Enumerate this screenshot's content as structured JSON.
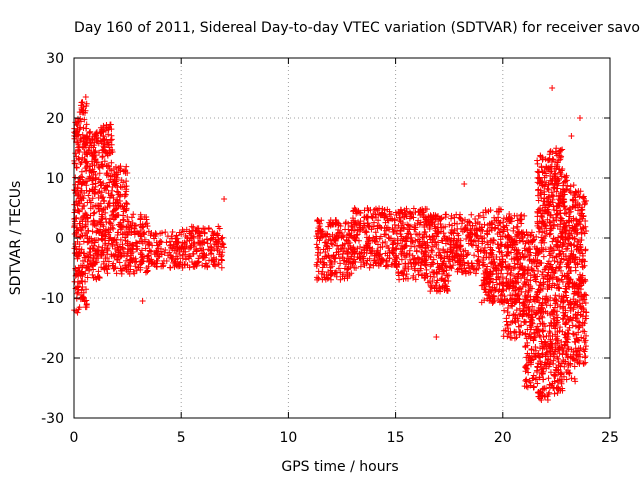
{
  "chart_data": {
    "type": "scatter",
    "title": "Day 160 of 2011, Sidereal Day-to-day VTEC variation (SDTVAR) for receiver savo",
    "xlabel": "GPS time / hours",
    "ylabel": "SDTVAR / TECUs",
    "xlim": [
      0,
      25
    ],
    "ylim": [
      -30,
      30
    ],
    "xticks": [
      0,
      5,
      10,
      15,
      20,
      25
    ],
    "xtick_labels": [
      "0",
      "5",
      "10",
      "15",
      "20",
      "25"
    ],
    "yticks": [
      -30,
      -20,
      -10,
      0,
      10,
      20,
      30
    ],
    "ytick_labels": [
      "-30",
      "-20",
      "-10",
      "0",
      "10",
      "20",
      "30"
    ],
    "grid": true,
    "marker": "+",
    "color": "#ff0000",
    "bands": [
      {
        "x": [
          0.0,
          0.3
        ],
        "y": [
          -13,
          21
        ]
      },
      {
        "x": [
          0.3,
          0.6
        ],
        "y": [
          -12,
          23
        ]
      },
      {
        "x": [
          0.6,
          1.2
        ],
        "y": [
          -7,
          18
        ]
      },
      {
        "x": [
          1.2,
          1.8
        ],
        "y": [
          -6,
          19
        ]
      },
      {
        "x": [
          1.8,
          2.5
        ],
        "y": [
          -6,
          12
        ]
      },
      {
        "x": [
          2.5,
          3.5
        ],
        "y": [
          -6,
          4
        ]
      },
      {
        "x": [
          3.5,
          5.0
        ],
        "y": [
          -5,
          1
        ]
      },
      {
        "x": [
          5.0,
          7.0
        ],
        "y": [
          -5,
          2
        ]
      },
      {
        "x": [
          11.3,
          13.0
        ],
        "y": [
          -7,
          3
        ]
      },
      {
        "x": [
          13.0,
          15.0
        ],
        "y": [
          -5,
          5
        ]
      },
      {
        "x": [
          15.0,
          16.5
        ],
        "y": [
          -7,
          5
        ]
      },
      {
        "x": [
          16.5,
          17.5
        ],
        "y": [
          -9,
          4
        ]
      },
      {
        "x": [
          17.5,
          19.0
        ],
        "y": [
          -6,
          4
        ]
      },
      {
        "x": [
          19.0,
          20.0
        ],
        "y": [
          -11,
          5
        ]
      },
      {
        "x": [
          20.0,
          21.0
        ],
        "y": [
          -17,
          4
        ]
      },
      {
        "x": [
          21.0,
          21.6
        ],
        "y": [
          -25,
          1
        ]
      },
      {
        "x": [
          21.6,
          22.2
        ],
        "y": [
          -27,
          14
        ]
      },
      {
        "x": [
          22.2,
          22.8
        ],
        "y": [
          -26,
          15
        ]
      },
      {
        "x": [
          22.8,
          23.4
        ],
        "y": [
          -24,
          11
        ]
      },
      {
        "x": [
          23.4,
          23.9
        ],
        "y": [
          -21,
          8
        ]
      }
    ],
    "outliers": [
      {
        "x": 0.55,
        "y": 23.5
      },
      {
        "x": 3.2,
        "y": -10.5
      },
      {
        "x": 7.0,
        "y": 6.5
      },
      {
        "x": 16.9,
        "y": -16.5
      },
      {
        "x": 18.2,
        "y": 9
      },
      {
        "x": 22.3,
        "y": 25
      },
      {
        "x": 23.6,
        "y": 20
      },
      {
        "x": 23.2,
        "y": 17
      },
      {
        "x": 21.8,
        "y": -27
      }
    ]
  }
}
